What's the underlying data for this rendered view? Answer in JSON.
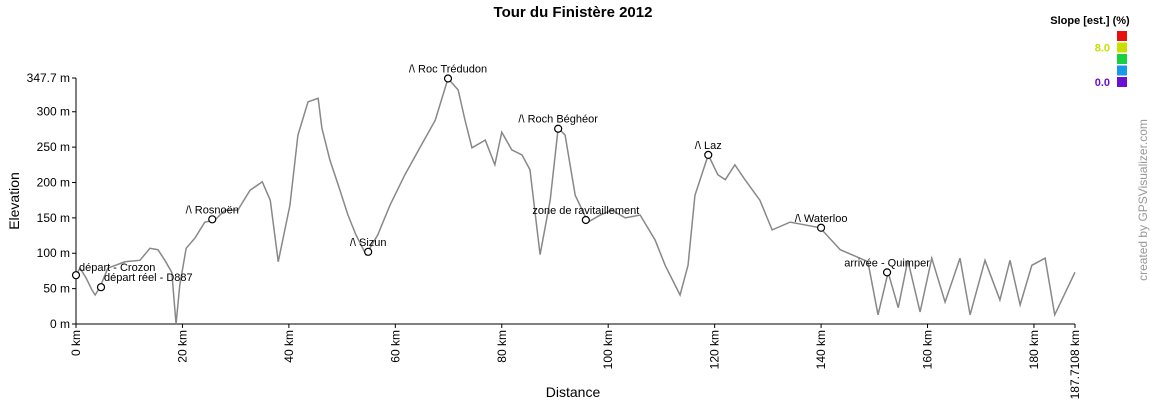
{
  "chart_data": {
    "type": "line",
    "title": "Tour du Finistère 2012",
    "x_label": "Distance",
    "y_label": "Elevation",
    "x": [
      0,
      0.75,
      1.9,
      3,
      3.6,
      4.5,
      6,
      9.2,
      12,
      13.9,
      15.4,
      16.7,
      18,
      18.8,
      19.5,
      20.7,
      22.4,
      24.2,
      26.1,
      28,
      30.4,
      32.7,
      35,
      36.5,
      38,
      40.2,
      41.7,
      43.6,
      45.5,
      46.2,
      47.7,
      49.6,
      51.1,
      52.6,
      54.5,
      56.7,
      59,
      61.8,
      64.6,
      67.5,
      69.9,
      71.8,
      73.1,
      74.4,
      76.9,
      78.7,
      80,
      81.9,
      83.8,
      85.3,
      87.2,
      89.1,
      90.6,
      91.9,
      93.8,
      96.2,
      98.5,
      100.7,
      103.2,
      106,
      108.8,
      110.7,
      113.5,
      115,
      116.3,
      118.8,
      120.6,
      122,
      123.8,
      125.7,
      128.5,
      130.8,
      134.2,
      137,
      139.8,
      143.6,
      147.3,
      148.8,
      150.7,
      152.6,
      154.5,
      156.3,
      158.6,
      160.8,
      163.3,
      166.1,
      168,
      170.8,
      173.6,
      175.5,
      177.4,
      179.6,
      182.1,
      183.9,
      187.7
    ],
    "series": [
      {
        "color": "#888888",
        "values": [
          69,
          79,
          65,
          48,
          41,
          52,
          79,
          88,
          90,
          107,
          105,
          90,
          73,
          0,
          55,
          107,
          122,
          144,
          147,
          161,
          161,
          189,
          201,
          175,
          88,
          168,
          267,
          314,
          319,
          277,
          232,
          189,
          154,
          126,
          98,
          126,
          168,
          211,
          249,
          288,
          347,
          331,
          288,
          249,
          260,
          225,
          271,
          246,
          239,
          218,
          98,
          175,
          277,
          267,
          182,
          144,
          154,
          161,
          150,
          154,
          119,
          83,
          41,
          83,
          182,
          239,
          211,
          204,
          225,
          204,
          175,
          133,
          144,
          140,
          136,
          105,
          93,
          88,
          13,
          73,
          23,
          90,
          17,
          93,
          31,
          93,
          13,
          90,
          34,
          90,
          27,
          83,
          93,
          13,
          73
        ]
      }
    ],
    "xlim": [
      0,
      187.7108
    ],
    "ylim": [
      0,
      347.7
    ],
    "xticks": [
      {
        "value": 0,
        "label": "0 km"
      },
      {
        "value": 20,
        "label": "20 km"
      },
      {
        "value": 40,
        "label": "40 km"
      },
      {
        "value": 60,
        "label": "60 km"
      },
      {
        "value": 80,
        "label": "80 km"
      },
      {
        "value": 100,
        "label": "100 km"
      },
      {
        "value": 120,
        "label": "120 km"
      },
      {
        "value": 140,
        "label": "140 km"
      },
      {
        "value": 160,
        "label": "160 km"
      },
      {
        "value": 180,
        "label": "180 km"
      },
      {
        "value": 187.7108,
        "label": "187.7108 km"
      }
    ],
    "yticks": [
      {
        "value": 0,
        "label": "0 m"
      },
      {
        "value": 50,
        "label": "50 m"
      },
      {
        "value": 100,
        "label": "100 m"
      },
      {
        "value": 150,
        "label": "150 m"
      },
      {
        "value": 200,
        "label": "200 m"
      },
      {
        "value": 250,
        "label": "250 m"
      },
      {
        "value": 300,
        "label": "300 m"
      },
      {
        "value": 347.7,
        "label": "347.7 m"
      }
    ],
    "annotations": [
      {
        "text": "départ - Crozon",
        "x": 0,
        "y": 69
      },
      {
        "text": "départ réel - D887",
        "x": 4.7,
        "y": 52
      },
      {
        "text": "/\\ Rosnoën",
        "x": 25.6,
        "y": 148
      },
      {
        "text": "/\\ Sizun",
        "x": 54.9,
        "y": 102
      },
      {
        "text": "/\\ Roc Trédudon",
        "x": 69.9,
        "y": 347
      },
      {
        "text": "/\\ Roch Béghéor",
        "x": 90.6,
        "y": 276
      },
      {
        "text": "zone de ravitaillement",
        "x": 95.8,
        "y": 147
      },
      {
        "text": "/\\ Laz",
        "x": 118.8,
        "y": 239
      },
      {
        "text": "/\\ Waterloo",
        "x": 140,
        "y": 136
      },
      {
        "text": "arrivée - Quimper",
        "x": 152.4,
        "y": 73
      }
    ],
    "legend_title": "Slope [est.] (%)",
    "slope_legend": [
      {
        "value": 10.7,
        "color": "#e8100c"
      },
      {
        "value": 8,
        "label": "8.0",
        "color": "#c8e000"
      },
      {
        "value": 5.3,
        "color": "#18d040"
      },
      {
        "value": 2.7,
        "color": "#1898e8"
      },
      {
        "value": 0,
        "label": "0.0",
        "color": "#6a10d0"
      }
    ],
    "credit": "created by GPSVisualizer.com"
  }
}
